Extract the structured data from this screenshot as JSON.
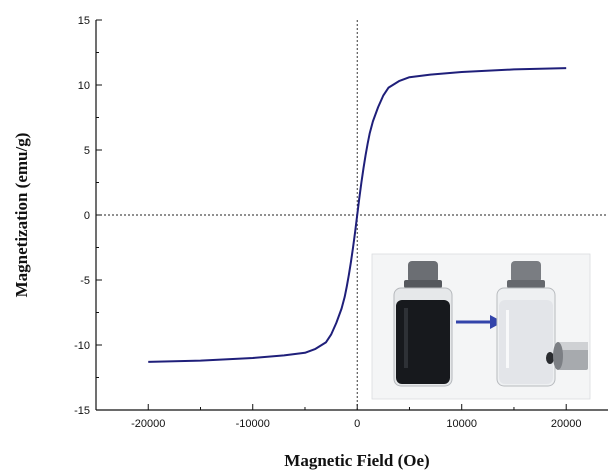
{
  "chart_data": {
    "type": "line",
    "xlabel": "Magnetic Field (Oe)",
    "ylabel": "Magnetization (emu/g)",
    "xlim": [
      -25000,
      24000
    ],
    "ylim": [
      -15,
      15
    ],
    "xticks": [
      -20000,
      -10000,
      0,
      10000,
      20000
    ],
    "xtick_labels": [
      "-20000",
      "-10000",
      "0",
      "10000",
      "20000"
    ],
    "yticks": [
      -15,
      -10,
      -5,
      0,
      5,
      10,
      15
    ],
    "ytick_labels": [
      "-15",
      "-10",
      "-5",
      "0",
      "5",
      "10",
      "15"
    ],
    "zero_lines": "dotted",
    "grid": false,
    "series": [
      {
        "color": "#1f1f7a",
        "x": [
          -20000,
          -15000,
          -10000,
          -7000,
          -5000,
          -4000,
          -3000,
          -2500,
          -2000,
          -1500,
          -1200,
          -1000,
          -800,
          -600,
          -400,
          -200,
          0,
          200,
          400,
          600,
          800,
          1000,
          1200,
          1500,
          2000,
          2500,
          3000,
          4000,
          5000,
          7000,
          10000,
          15000,
          20000
        ],
        "y": [
          -11.3,
          -11.2,
          -11.0,
          -10.8,
          -10.6,
          -10.3,
          -9.8,
          -9.2,
          -8.3,
          -7.2,
          -6.3,
          -5.5,
          -4.6,
          -3.6,
          -2.5,
          -1.3,
          0,
          1.3,
          2.5,
          3.6,
          4.6,
          5.5,
          6.3,
          7.2,
          8.3,
          9.2,
          9.8,
          10.3,
          10.6,
          10.8,
          11.0,
          11.2,
          11.3
        ]
      }
    ]
  },
  "inset": {
    "arrow_color": "#3344aa"
  }
}
